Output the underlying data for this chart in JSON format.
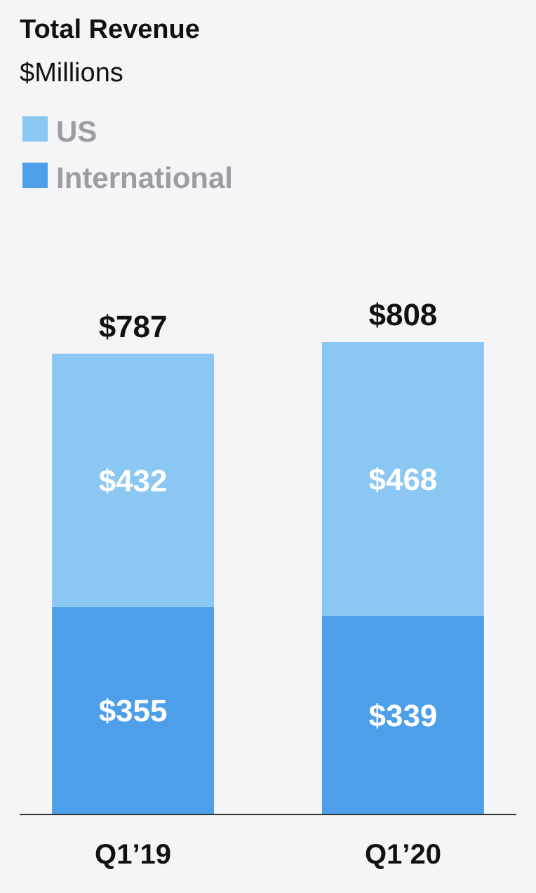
{
  "chart_data": {
    "type": "bar",
    "title": "Total Revenue",
    "subtitle": "$Millions",
    "categories": [
      "Q1’19",
      "Q1’20"
    ],
    "stacked": true,
    "legend": "top left",
    "series": [
      {
        "name": "International",
        "color": "#4c9fe8",
        "values": [
          355,
          339
        ],
        "value_labels": [
          "$355",
          "$339"
        ]
      },
      {
        "name": "US",
        "color": "#8bc7f3",
        "values": [
          432,
          468
        ],
        "value_labels": [
          "$432",
          "$468"
        ]
      }
    ],
    "totals": [
      "$787",
      "$808"
    ]
  }
}
